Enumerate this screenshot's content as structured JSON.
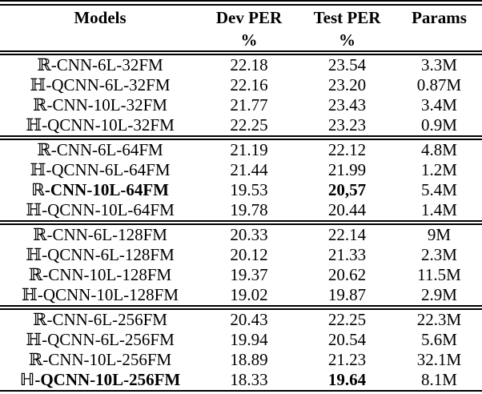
{
  "table": {
    "headers": {
      "models": "Models",
      "dev_per": "Dev PER",
      "test_per": "Test PER",
      "params": "Params",
      "dev_unit": "%",
      "test_unit": "%"
    },
    "text_color": "#000000",
    "background_color": "#ffffff",
    "groups": [
      {
        "rows": [
          {
            "model": "ℝ-CNN-6L-32FM",
            "dev": "22.18",
            "test": "23.54",
            "params": "3.3M"
          },
          {
            "model": "ℍ-QCNN-6L-32FM",
            "dev": "22.16",
            "test": "23.20",
            "params": "0.87M"
          },
          {
            "model": "ℝ-CNN-10L-32FM",
            "dev": "21.77",
            "test": "23.43",
            "params": "3.4M"
          },
          {
            "model": "ℍ-QCNN-10L-32FM",
            "dev": "22.25",
            "test": "23.23",
            "params": "0.9M"
          }
        ]
      },
      {
        "rows": [
          {
            "model": "ℝ-CNN-6L-64FM",
            "dev": "21.19",
            "test": "22.12",
            "params": "4.8M"
          },
          {
            "model": "ℍ-QCNN-6L-64FM",
            "dev": "21.44",
            "test": "21.99",
            "params": "1.2M"
          },
          {
            "model": "ℝ-CNN-10L-64FM",
            "dev": "19.53",
            "test": "20,57",
            "params": "5.4M",
            "bold_model": true,
            "bold_test": true
          },
          {
            "model": "ℍ-QCNN-10L-64FM",
            "dev": "19.78",
            "test": "20.44",
            "params": "1.4M"
          }
        ]
      },
      {
        "rows": [
          {
            "model": "ℝ-CNN-6L-128FM",
            "dev": "20.33",
            "test": "22.14",
            "params": "9M"
          },
          {
            "model": "ℍ-QCNN-6L-128FM",
            "dev": "20.12",
            "test": "21.33",
            "params": "2.3M"
          },
          {
            "model": "ℝ-CNN-10L-128FM",
            "dev": "19.37",
            "test": "20.62",
            "params": "11.5M"
          },
          {
            "model": "ℍ-QCNN-10L-128FM",
            "dev": "19.02",
            "test": "19.87",
            "params": "2.9M"
          }
        ]
      },
      {
        "rows": [
          {
            "model": "ℝ-CNN-6L-256FM",
            "dev": "20.43",
            "test": "22.25",
            "params": "22.3M"
          },
          {
            "model": "ℍ-QCNN-6L-256FM",
            "dev": "19.94",
            "test": "20.54",
            "params": "5.6M"
          },
          {
            "model": "ℝ-CNN-10L-256FM",
            "dev": "18.89",
            "test": "21.23",
            "params": "32.1M"
          },
          {
            "model": "ℍ-QCNN-10L-256FM",
            "dev": "18.33",
            "test": "19.64",
            "params": "8.1M",
            "bold_model": true,
            "bold_test": true
          }
        ]
      }
    ]
  }
}
